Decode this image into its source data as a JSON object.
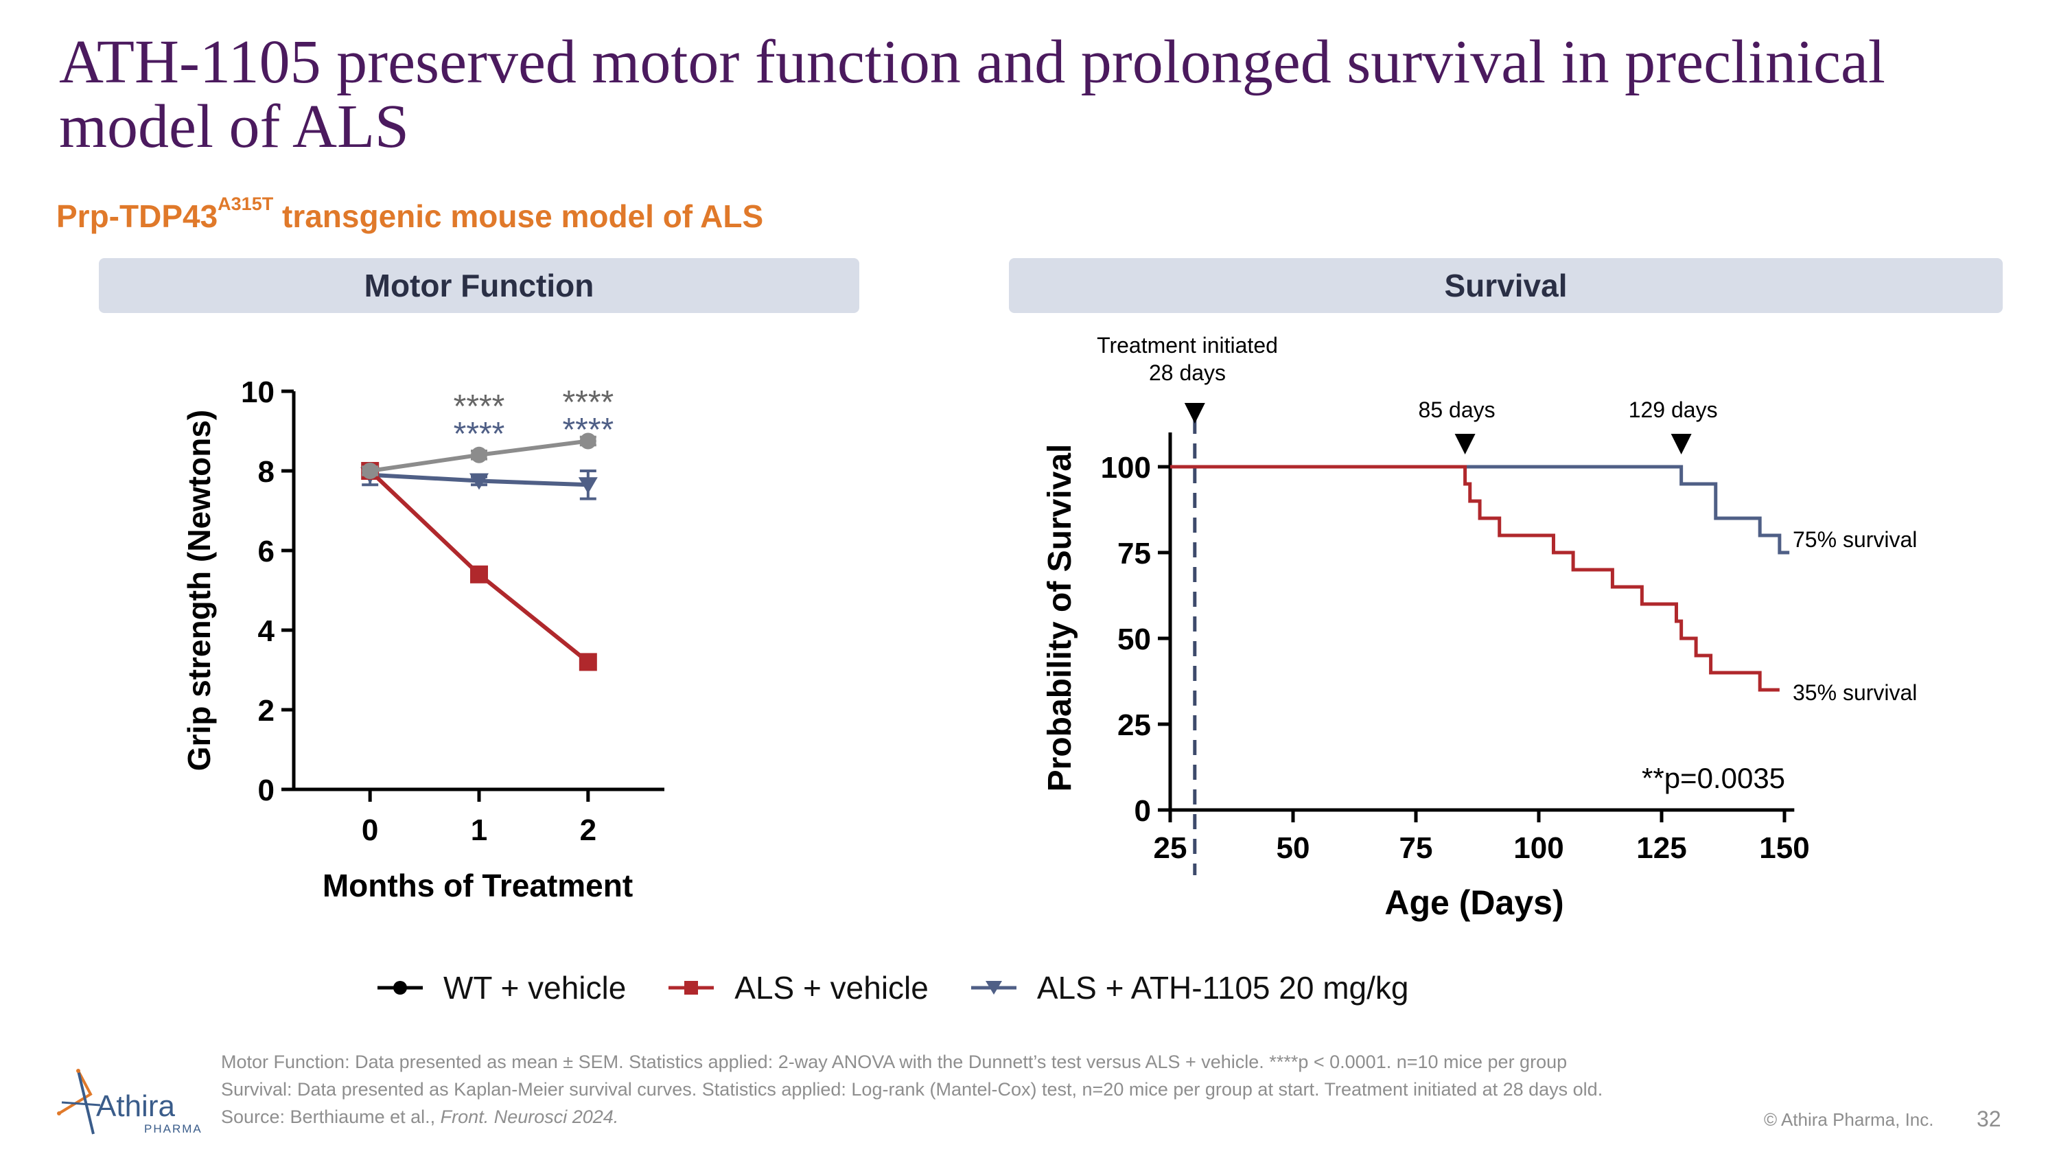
{
  "slide": {
    "title": "ATH-1105 preserved motor function and prolonged survival in preclinical model of ALS",
    "subtitle_main": "Prp-TDP43",
    "subtitle_sup": "A315T",
    "subtitle_rest": " transgenic mouse model of ALS",
    "page_number": "32",
    "copyright": "© Athira Pharma, Inc.",
    "logo_text": "Athira",
    "logo_sub": "PHARMA"
  },
  "panels": {
    "motor_header": "Motor Function",
    "survival_header": "Survival"
  },
  "legend": [
    {
      "label": "WT + vehicle",
      "color": "#000000",
      "marker": "circle"
    },
    {
      "label": "ALS + vehicle",
      "color": "#b0282c",
      "marker": "square"
    },
    {
      "label": "ALS + ATH-1105 20 mg/kg",
      "color": "#4f5f86",
      "marker": "triangle-down"
    }
  ],
  "footnotes": {
    "motor": "Motor Function: Data presented as mean ± SEM. Statistics applied: 2-way ANOVA with the Dunnett’s test versus ALS + vehicle. ****p < 0.0001. n=10 mice per group",
    "survival": "Survival: Data presented as Kaplan-Meier survival curves. Statistics applied: Log-rank (Mantel-Cox) test, n=20 mice per group at start. Treatment initiated at 28 days old.",
    "source_prefix": "Source: Berthiaume et al., ",
    "source_journal": "Front. Neurosci 2024."
  },
  "chart_data": [
    {
      "type": "line",
      "title": "Motor Function",
      "xlabel": "Months of Treatment",
      "ylabel": "Grip strength (Newtons)",
      "x": [
        0,
        1,
        2
      ],
      "xlim": [
        -0.7,
        2.7
      ],
      "ylim": [
        0,
        10
      ],
      "yticks": [
        0,
        2,
        4,
        6,
        8,
        10
      ],
      "series": [
        {
          "name": "WT + vehicle",
          "color": "#8c8c8c",
          "marker": "circle",
          "values": [
            8.0,
            8.4,
            8.75
          ],
          "err": [
            0.1,
            0.1,
            0.1
          ]
        },
        {
          "name": "ALS + vehicle",
          "color": "#b0282c",
          "marker": "square",
          "values": [
            8.0,
            5.4,
            3.2
          ],
          "err": [
            0.1,
            0.1,
            0.1
          ]
        },
        {
          "name": "ALS + ATH-1105 20 mg/kg",
          "color": "#4f5f86",
          "marker": "triangle-down",
          "values": [
            7.9,
            7.75,
            7.65
          ],
          "err": [
            0.25,
            0.1,
            0.35
          ]
        }
      ],
      "annotations": [
        {
          "x": 1,
          "text": "****",
          "color": "#666666",
          "row": 1
        },
        {
          "x": 1,
          "text": "****",
          "color": "#4f5f86",
          "row": 2
        },
        {
          "x": 2,
          "text": "****",
          "color": "#666666",
          "row": 1
        },
        {
          "x": 2,
          "text": "****",
          "color": "#4f5f86",
          "row": 2
        }
      ]
    },
    {
      "type": "line",
      "subtype": "kaplan-meier",
      "title": "Survival",
      "xlabel": "Age (Days)",
      "ylabel": "Probability of Survival",
      "xlim": [
        25,
        152
      ],
      "xticks": [
        25,
        50,
        75,
        100,
        125,
        150
      ],
      "ylim": [
        0,
        110
      ],
      "yticks": [
        0,
        25,
        50,
        75,
        100
      ],
      "series": [
        {
          "name": "ALS + vehicle",
          "color": "#b0282c",
          "steps": [
            [
              25,
              100
            ],
            [
              85,
              100
            ],
            [
              85,
              95
            ],
            [
              86,
              95
            ],
            [
              86,
              90
            ],
            [
              88,
              90
            ],
            [
              88,
              85
            ],
            [
              92,
              85
            ],
            [
              92,
              80
            ],
            [
              103,
              80
            ],
            [
              103,
              75
            ],
            [
              107,
              75
            ],
            [
              107,
              70
            ],
            [
              115,
              70
            ],
            [
              115,
              65
            ],
            [
              121,
              65
            ],
            [
              121,
              60
            ],
            [
              128,
              60
            ],
            [
              128,
              55
            ],
            [
              129,
              55
            ],
            [
              129,
              50
            ],
            [
              132,
              50
            ],
            [
              132,
              45
            ],
            [
              135,
              45
            ],
            [
              135,
              40
            ],
            [
              145,
              40
            ],
            [
              145,
              35
            ],
            [
              149,
              35
            ]
          ],
          "end_label": "35% survival"
        },
        {
          "name": "ALS + ATH-1105 20 mg/kg",
          "color": "#4f5f86",
          "steps": [
            [
              85,
              100
            ],
            [
              129,
              100
            ],
            [
              129,
              95
            ],
            [
              136,
              95
            ],
            [
              136,
              85
            ],
            [
              145,
              85
            ],
            [
              145,
              80
            ],
            [
              149,
              80
            ],
            [
              149,
              75
            ],
            [
              151,
              75
            ]
          ],
          "end_label": "75% survival"
        }
      ],
      "treatment_line": {
        "x": 30,
        "label_line1": "Treatment initiated",
        "label_line2": "28 days"
      },
      "markers": [
        {
          "x": 85,
          "label": "85 days"
        },
        {
          "x": 129,
          "label": "129 days"
        }
      ],
      "pvalue": "**p=0.0035"
    }
  ]
}
